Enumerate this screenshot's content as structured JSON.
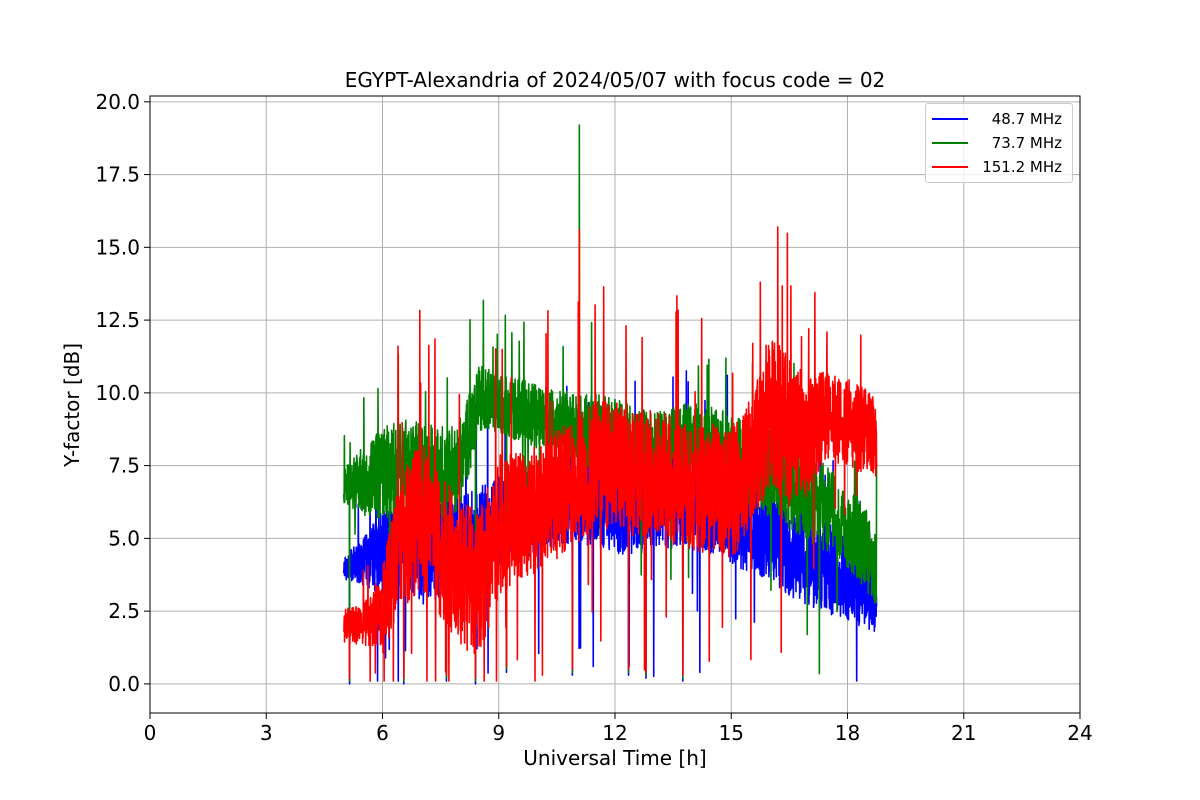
{
  "chart_data": {
    "type": "line",
    "title": "EGYPT-Alexandria of 2024/05/07 with focus code = 02",
    "xlabel": "Universal Time [h]",
    "ylabel": "Y-factor [dB]",
    "xlim": [
      0,
      24
    ],
    "ylim": [
      -1.0,
      20.2
    ],
    "xticks": [
      "0",
      "3",
      "6",
      "9",
      "12",
      "15",
      "18",
      "21",
      "24"
    ],
    "yticks": [
      "0.0",
      "2.5",
      "5.0",
      "7.5",
      "10.0",
      "12.5",
      "15.0",
      "17.5",
      "20.0"
    ],
    "grid": true,
    "legend_position": "top-right",
    "series": [
      {
        "name": "  48.7 MHz",
        "color": "#0000ff",
        "x": [
          5.0,
          5.5,
          6.0,
          6.5,
          7.0,
          7.5,
          8.0,
          8.5,
          9.0,
          9.5,
          10.0,
          10.5,
          11.0,
          11.5,
          12.0,
          12.5,
          13.0,
          13.5,
          14.0,
          14.5,
          15.0,
          15.5,
          16.0,
          16.5,
          17.0,
          17.5,
          18.0,
          18.5,
          18.75
        ],
        "y": [
          4.0,
          4.2,
          4.5,
          4.8,
          4.3,
          4.6,
          4.9,
          5.2,
          5.6,
          5.8,
          6.0,
          6.2,
          6.3,
          6.3,
          6.1,
          6.0,
          6.2,
          6.2,
          6.4,
          6.0,
          5.7,
          5.4,
          5.2,
          4.6,
          4.3,
          4.0,
          3.6,
          3.1,
          2.8
        ],
        "amp": [
          0.4,
          0.8,
          1.5,
          1.6,
          1.6,
          1.6,
          1.6,
          1.6,
          1.6,
          1.6,
          1.5,
          1.5,
          1.5,
          1.6,
          1.6,
          1.6,
          1.6,
          1.6,
          1.6,
          1.6,
          1.6,
          1.6,
          1.6,
          1.6,
          1.6,
          1.6,
          1.4,
          1.3,
          1.2
        ]
      },
      {
        "name": "  73.7 MHz",
        "color": "#008000",
        "x": [
          5.0,
          5.5,
          6.0,
          6.5,
          7.0,
          7.5,
          8.0,
          8.5,
          9.0,
          9.5,
          10.0,
          10.5,
          11.0,
          11.5,
          12.0,
          12.5,
          13.0,
          13.5,
          14.0,
          14.5,
          15.0,
          15.5,
          16.0,
          16.5,
          17.0,
          17.5,
          18.0,
          18.5,
          18.75
        ],
        "y": [
          6.8,
          7.0,
          7.2,
          7.5,
          7.4,
          7.2,
          7.6,
          9.8,
          9.6,
          9.4,
          9.2,
          9.0,
          8.8,
          8.6,
          8.4,
          8.2,
          8.0,
          8.2,
          8.5,
          8.3,
          8.0,
          7.6,
          7.2,
          6.8,
          6.4,
          6.0,
          5.4,
          4.6,
          3.8
        ],
        "amp": [
          0.6,
          1.2,
          1.6,
          1.6,
          1.6,
          1.6,
          1.6,
          1.2,
          1.0,
          1.1,
          1.1,
          1.1,
          1.2,
          1.4,
          1.4,
          1.4,
          1.3,
          1.3,
          1.2,
          1.2,
          1.3,
          1.5,
          1.5,
          1.5,
          1.5,
          1.5,
          1.4,
          1.4,
          1.3
        ]
      },
      {
        "name": "151.2 MHz",
        "color": "#ff0000",
        "x": [
          5.0,
          5.5,
          6.0,
          6.5,
          7.0,
          7.5,
          8.0,
          8.5,
          9.0,
          9.5,
          10.0,
          10.5,
          11.0,
          11.5,
          12.0,
          12.5,
          13.0,
          13.5,
          14.0,
          14.5,
          15.0,
          15.5,
          16.0,
          16.5,
          17.0,
          17.5,
          18.0,
          18.5,
          18.75
        ],
        "y": [
          2.0,
          2.0,
          2.5,
          5.0,
          5.8,
          4.8,
          3.8,
          3.4,
          5.4,
          5.8,
          6.0,
          6.5,
          7.0,
          7.5,
          7.5,
          7.2,
          7.4,
          7.0,
          6.6,
          6.8,
          6.5,
          7.5,
          9.5,
          8.6,
          8.5,
          9.2,
          9.0,
          8.6,
          8.2
        ],
        "amp": [
          0.6,
          0.7,
          1.5,
          2.5,
          2.5,
          2.5,
          2.5,
          2.5,
          2.5,
          2.2,
          2.2,
          2.2,
          2.2,
          2.2,
          2.2,
          2.2,
          2.2,
          2.2,
          2.2,
          2.2,
          2.2,
          2.4,
          2.6,
          2.6,
          2.0,
          1.6,
          1.5,
          1.5,
          1.5
        ]
      }
    ],
    "peaks": [
      {
        "series": "  73.7 MHz",
        "x": 11.08,
        "y": 19.2
      },
      {
        "series": "151.2 MHz",
        "x": 11.08,
        "y": 15.6
      },
      {
        "series": "151.2 MHz",
        "x": 16.2,
        "y": 15.7
      },
      {
        "series": "151.2 MHz",
        "x": 15.75,
        "y": 13.8
      },
      {
        "series": "151.2 MHz",
        "x": 12.7,
        "y": 11.9
      },
      {
        "series": "151.2 MHz",
        "x": 6.4,
        "y": 11.6
      },
      {
        "series": "151.2 MHz",
        "x": 17.0,
        "y": 12.2
      }
    ],
    "dips": [
      {
        "x": 5.15,
        "y": 0.0
      },
      {
        "x": 6.55,
        "y": 0.0
      },
      {
        "x": 7.65,
        "y": 0.1
      },
      {
        "x": 8.4,
        "y": 0.0
      },
      {
        "x": 9.2,
        "y": 0.4
      },
      {
        "x": 10.9,
        "y": 0.3
      },
      {
        "x": 12.35,
        "y": 0.3
      },
      {
        "x": 12.8,
        "y": 0.2
      },
      {
        "x": 13.75,
        "y": 0.1
      }
    ]
  }
}
